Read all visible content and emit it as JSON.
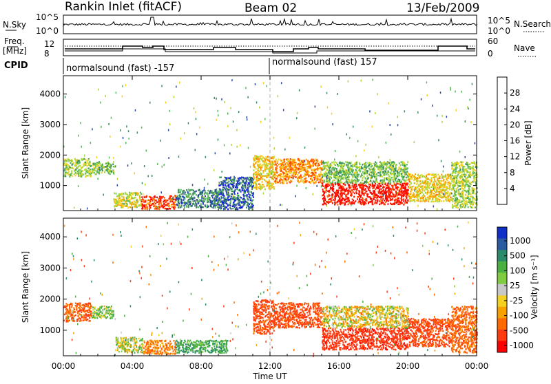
{
  "header": {
    "station": "Rankin Inlet (fitACF)",
    "beam": "Beam 02",
    "date": "13/Feb/2009"
  },
  "nsky_panel": {
    "left_label": "N.Sky",
    "left_ticks": [
      "10^5",
      "10^0"
    ],
    "right_label": "N.Search",
    "right_ticks": [
      "10^5",
      "10^0"
    ]
  },
  "freq_panel": {
    "left_label_1": "Freq.",
    "left_label_2": "[MHz]",
    "left_ticks": [
      "12",
      "8"
    ],
    "right_label": "Nave",
    "right_ticks": [
      "60",
      "0"
    ]
  },
  "cpid_panel": {
    "label": "CPID",
    "segments": [
      {
        "text": "normalsound (fast) -157",
        "start_ut": 0
      },
      {
        "text": "normalsound (fast) 157",
        "start_ut": 12
      }
    ]
  },
  "colors": {
    "power_scale": [
      "#1010ff",
      "#2a4aa8",
      "#3a8a5a",
      "#5ab85a",
      "#a8d838",
      "#f4d020",
      "#ffa000",
      "#ff6a00",
      "#ff3000",
      "#ff0000"
    ],
    "velocity_scale": [
      "#1030c8",
      "#2a5aa0",
      "#2a8a6a",
      "#4ab040",
      "#80cc40",
      "#c8c8c8",
      "#f4d020",
      "#f8a000",
      "#ff6a00",
      "#ff3a10",
      "#ff0000"
    ]
  },
  "chart_data": [
    {
      "type": "heatmap",
      "name": "power",
      "x": {
        "label": "Time UT",
        "range": [
          0,
          24
        ],
        "ticks": [
          "00:00",
          "04:00",
          "08:00",
          "12:00",
          "16:00",
          "20:00",
          "00:00"
        ]
      },
      "y": {
        "label": "Slant Range [km]",
        "range": [
          180,
          4600
        ],
        "ticks": [
          1000,
          2000,
          3000,
          4000
        ]
      },
      "colorbar": {
        "label": "Power [dB]",
        "range": [
          0,
          32
        ],
        "ticks": [
          4,
          8,
          12,
          16,
          20,
          24,
          28
        ]
      },
      "regions": [
        {
          "t0": 0.0,
          "t1": 1.6,
          "r0": 1300,
          "r1": 1900,
          "power": 14
        },
        {
          "t0": 1.6,
          "t1": 2.9,
          "r0": 1400,
          "r1": 1800,
          "power": 12
        },
        {
          "t0": 2.9,
          "t1": 4.5,
          "r0": 300,
          "r1": 800,
          "power": 16
        },
        {
          "t0": 4.5,
          "t1": 6.5,
          "r0": 250,
          "r1": 700,
          "power": 26
        },
        {
          "t0": 6.5,
          "t1": 9.0,
          "r0": 300,
          "r1": 900,
          "power": 8
        },
        {
          "t0": 9.0,
          "t1": 11.0,
          "r0": 250,
          "r1": 1300,
          "power": 6
        },
        {
          "t0": 11.0,
          "t1": 12.2,
          "r0": 900,
          "r1": 2000,
          "power": 18
        },
        {
          "t0": 12.2,
          "t1": 15.0,
          "r0": 1100,
          "r1": 1900,
          "power": 22
        },
        {
          "t0": 15.0,
          "t1": 20.0,
          "r0": 400,
          "r1": 1100,
          "power": 30
        },
        {
          "t0": 15.0,
          "t1": 20.0,
          "r0": 1100,
          "r1": 1800,
          "power": 12
        },
        {
          "t0": 20.0,
          "t1": 22.5,
          "r0": 500,
          "r1": 1400,
          "power": 18
        },
        {
          "t0": 22.5,
          "t1": 24.0,
          "r0": 300,
          "r1": 1800,
          "power": 14
        }
      ]
    },
    {
      "type": "heatmap",
      "name": "velocity",
      "x": {
        "label": "Time UT",
        "range": [
          0,
          24
        ],
        "ticks": [
          "00:00",
          "04:00",
          "08:00",
          "12:00",
          "16:00",
          "20:00",
          "00:00"
        ]
      },
      "y": {
        "label": "Slant Range [km]",
        "range": [
          180,
          4600
        ],
        "ticks": [
          1000,
          2000,
          3000,
          4000
        ]
      },
      "colorbar": {
        "label": "Velocity [m s⁻¹]",
        "ticks": [
          "1000",
          "500",
          "100",
          "25",
          "-25",
          "-100",
          "-500",
          "-1000"
        ]
      },
      "regions": [
        {
          "t0": 0.0,
          "t1": 1.6,
          "r0": 1300,
          "r1": 1900,
          "velocity": -200
        },
        {
          "t0": 1.6,
          "t1": 2.9,
          "r0": 1400,
          "r1": 1800,
          "velocity": 100
        },
        {
          "t0": 3.0,
          "t1": 4.6,
          "r0": 300,
          "r1": 800,
          "velocity": 50
        },
        {
          "t0": 4.6,
          "t1": 6.5,
          "r0": 250,
          "r1": 700,
          "velocity": -150
        },
        {
          "t0": 6.5,
          "t1": 9.5,
          "r0": 300,
          "r1": 700,
          "velocity": 200
        },
        {
          "t0": 11.0,
          "t1": 12.2,
          "r0": 900,
          "r1": 2000,
          "velocity": -300
        },
        {
          "t0": 12.2,
          "t1": 15.0,
          "r0": 1100,
          "r1": 1900,
          "velocity": -300
        },
        {
          "t0": 15.0,
          "t1": 20.0,
          "r0": 400,
          "r1": 1100,
          "velocity": -400
        },
        {
          "t0": 15.0,
          "t1": 20.0,
          "r0": 1100,
          "r1": 1800,
          "velocity": 0
        },
        {
          "t0": 20.0,
          "t1": 22.5,
          "r0": 500,
          "r1": 1400,
          "velocity": -300
        },
        {
          "t0": 22.5,
          "t1": 24.0,
          "r0": 300,
          "r1": 1800,
          "velocity": -200
        }
      ]
    }
  ]
}
